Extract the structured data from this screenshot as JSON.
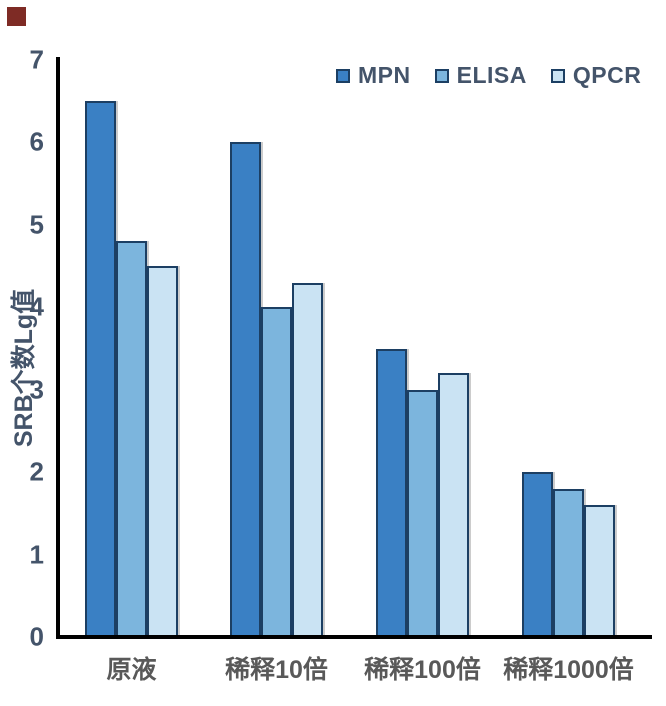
{
  "chart_data": {
    "type": "bar",
    "title": "",
    "categories": [
      "原液",
      "稀释10倍",
      "稀释100倍",
      "稀释1000倍"
    ],
    "series": [
      {
        "name": "MPN",
        "color": "#3A80C4",
        "values": [
          6.5,
          6.0,
          3.5,
          2.0
        ]
      },
      {
        "name": "ELISA",
        "color": "#7CB5DD",
        "values": [
          4.8,
          4.0,
          3.0,
          1.8
        ]
      },
      {
        "name": "QPCR",
        "color": "#CAE3F3",
        "values": [
          4.5,
          4.3,
          3.2,
          1.6
        ]
      }
    ],
    "xlabel": "",
    "ylabel": "SRB个数Lg值",
    "ylim": [
      0,
      7
    ],
    "yticks": [
      0,
      1,
      2,
      3,
      4,
      5,
      6,
      7
    ],
    "grid": false,
    "legend_position": "top-right",
    "bar_border_color": "#1C3F63",
    "axis_color": "#000000",
    "ytick_color": "#44546A",
    "xlabel_color": "#595959",
    "legend_text_color": "#44546A"
  },
  "decorations": {
    "corner_square_color": "#7E2B25"
  }
}
